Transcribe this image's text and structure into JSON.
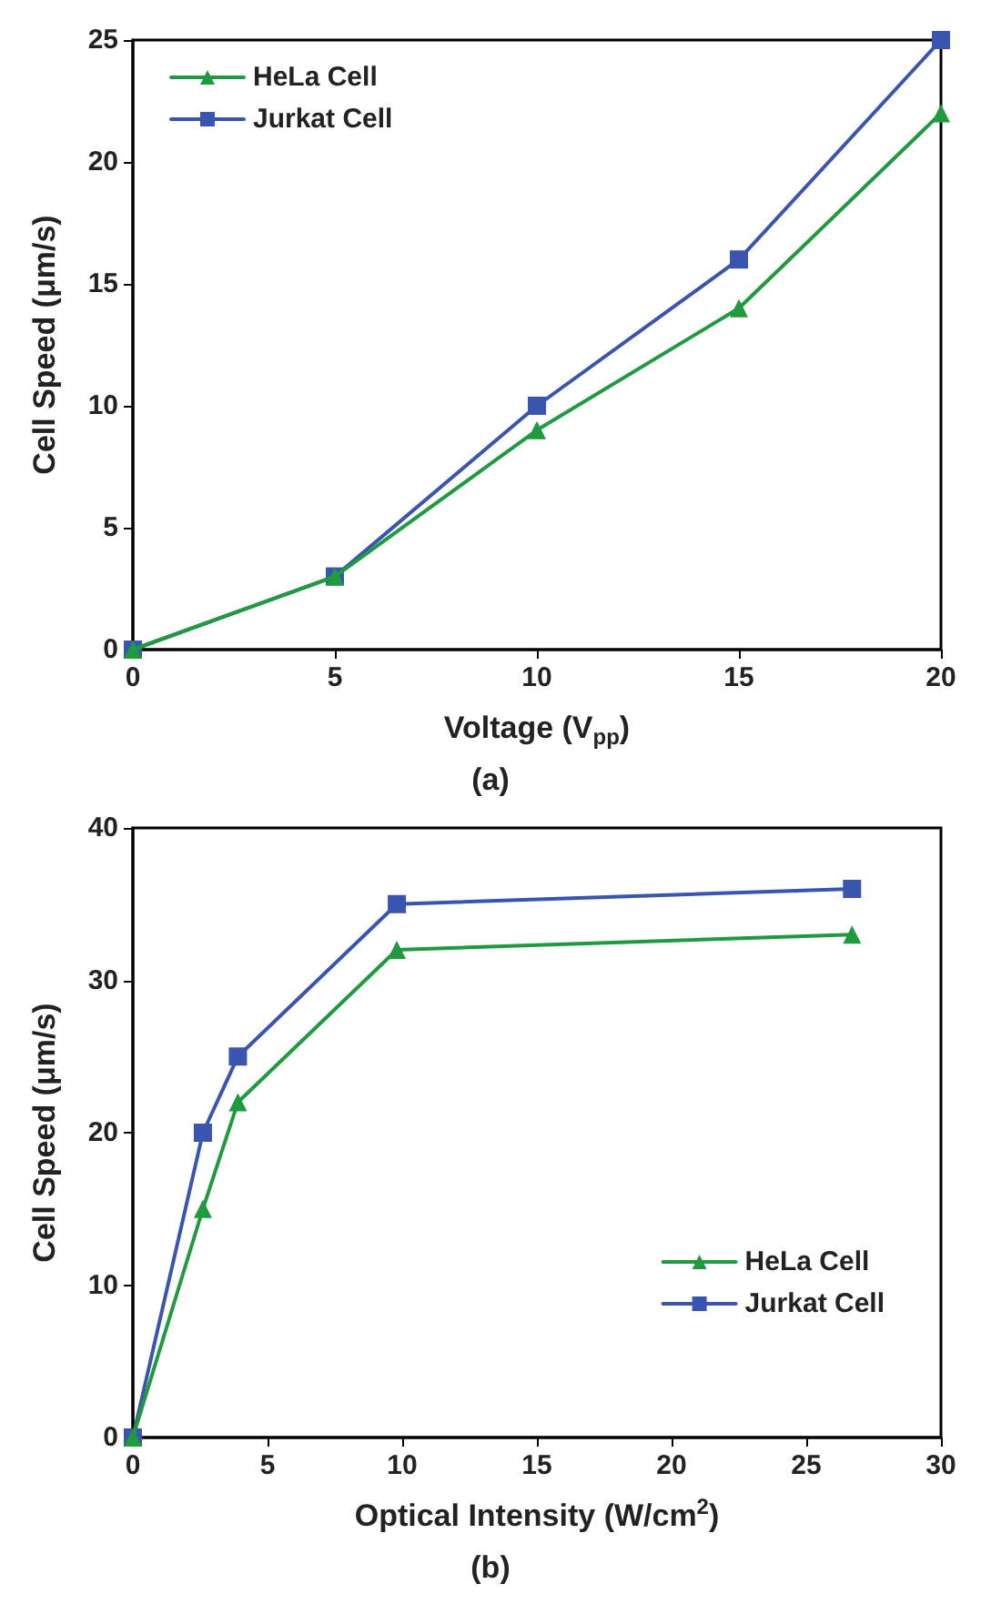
{
  "chart_data": [
    {
      "type": "line",
      "xlabel": "Voltage (V$_{pp}$)",
      "ylabel": "Cell Speed (μm/s)",
      "annotations": [
        "(a)"
      ],
      "xlim": [
        0,
        20
      ],
      "xticks": [
        0,
        5,
        10,
        15,
        20
      ],
      "ylim": [
        0,
        25
      ],
      "yticks": [
        0,
        5,
        10,
        15,
        20,
        25
      ],
      "grid": false,
      "legend": "top left",
      "line_style": "solid",
      "x": [
        0,
        5,
        10,
        15,
        20
      ],
      "series": [
        {
          "name": "HeLa Cell",
          "color": "#1f9a3f",
          "marker": "triangle",
          "values": [
            0,
            3,
            9,
            14,
            22
          ]
        },
        {
          "name": "Jurkat Cell",
          "color": "#3a55b0",
          "marker": "square",
          "values": [
            0,
            3,
            10,
            16,
            25
          ]
        }
      ]
    },
    {
      "type": "line",
      "xlabel": "Optical Intensity (W/cm$^{2}$)",
      "ylabel": "Cell Speed (μm/s)",
      "annotations": [
        "(b)"
      ],
      "xlim": [
        0,
        30
      ],
      "xticks": [
        0,
        5,
        10,
        15,
        20,
        25,
        30
      ],
      "ylim": [
        0,
        40
      ],
      "yticks": [
        0,
        10,
        20,
        30,
        40
      ],
      "grid": false,
      "legend": "bottom right",
      "line_style": "solid",
      "x": [
        0,
        2.6,
        3.9,
        9.8,
        26.7
      ],
      "series": [
        {
          "name": "HeLa Cell",
          "color": "#1f9a3f",
          "marker": "triangle",
          "values": [
            0,
            15,
            22,
            32,
            33
          ]
        },
        {
          "name": "Jurkat Cell",
          "color": "#3a55b0",
          "marker": "square",
          "values": [
            0,
            20,
            25,
            35,
            36
          ]
        }
      ]
    }
  ]
}
